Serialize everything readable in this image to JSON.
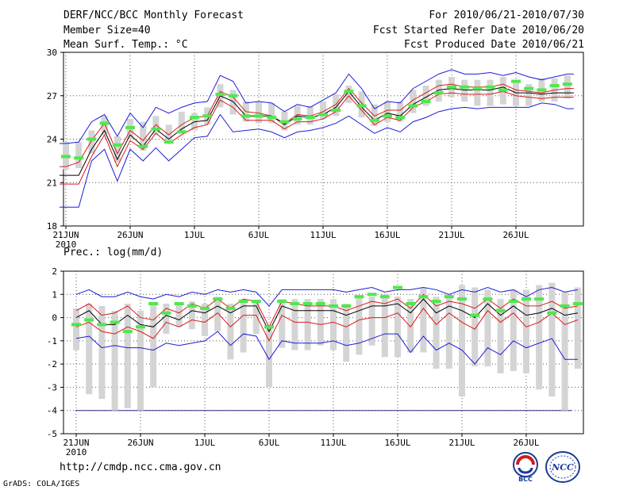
{
  "header": {
    "title": "DERF/NCC/BCC Monthly Forecast",
    "member_size": "Member Size=40",
    "variable": "Mean Surf. Temp.: °C",
    "period": "For 2010/06/21-2010/07/30",
    "fcst_started": "Fcst Started Refer Date 2010/06/20",
    "fcst_produced": "Fcst Produced Date 2010/06/21"
  },
  "footer": {
    "url": "http://cmdp.ncc.cma.gov.cn",
    "grads": "GrADS: COLA/IGES",
    "logo1_text": "BCC",
    "logo2_text": "NCC"
  },
  "colors": {
    "envelope": "#1c1cd8",
    "percentile": "#d81c1c",
    "median": "#000000",
    "box": "#d4d4d4",
    "observed": "#4ee84e",
    "grid": "#555555",
    "threshold": "#2a2a8a"
  },
  "chart_data": [
    {
      "type": "line",
      "title": "Mean Surf. Temp.: °C",
      "ylim": [
        18,
        30
      ],
      "yticks": [
        18,
        21,
        24,
        27,
        30
      ],
      "x_tick_labels": [
        "21JUN",
        "26JUN",
        "1JUL",
        "6JUL",
        "11JUL",
        "16JUL",
        "21JUL",
        "26JUL"
      ],
      "x_tick_days": [
        1,
        6,
        11,
        16,
        21,
        26,
        31,
        36
      ],
      "year_label": "2010",
      "n_days": 40,
      "series": [
        {
          "name": "max",
          "values": [
            23.7,
            23.8,
            25.2,
            25.7,
            24.2,
            25.8,
            24.8,
            26.2,
            25.8,
            26.2,
            26.5,
            26.6,
            28.4,
            28.0,
            26.5,
            26.6,
            26.5,
            25.9,
            26.4,
            26.2,
            26.7,
            27.2,
            28.5,
            27.5,
            26.1,
            26.6,
            26.5,
            27.5,
            28.0,
            28.5,
            28.8,
            28.5,
            28.5,
            28.6,
            28.4,
            28.6,
            28.3,
            28.1,
            28.3,
            28.5
          ]
        },
        {
          "name": "p_upper",
          "values": [
            22.1,
            22.4,
            23.9,
            25.1,
            23.0,
            24.6,
            23.9,
            25.0,
            24.3,
            25.0,
            25.5,
            25.6,
            27.3,
            26.9,
            25.9,
            25.8,
            25.6,
            25.1,
            25.7,
            25.6,
            25.9,
            26.4,
            27.5,
            26.5,
            25.6,
            26.0,
            26.0,
            26.7,
            27.2,
            27.7,
            27.8,
            27.6,
            27.6,
            27.6,
            27.8,
            27.4,
            27.3,
            27.2,
            27.4,
            27.5
          ]
        },
        {
          "name": "median",
          "values": [
            21.5,
            21.5,
            23.3,
            24.6,
            22.6,
            24.3,
            23.5,
            24.7,
            24.0,
            24.7,
            25.2,
            25.3,
            27.0,
            26.6,
            25.6,
            25.6,
            25.6,
            25.0,
            25.6,
            25.5,
            25.7,
            26.2,
            27.3,
            26.2,
            25.3,
            25.8,
            25.6,
            26.4,
            26.9,
            27.4,
            27.5,
            27.4,
            27.4,
            27.4,
            27.6,
            27.2,
            27.2,
            27.1,
            27.2,
            27.2
          ]
        },
        {
          "name": "p_lower",
          "values": [
            20.9,
            20.9,
            22.8,
            24.3,
            22.1,
            23.9,
            23.3,
            24.4,
            23.7,
            24.3,
            24.8,
            25.0,
            26.7,
            26.2,
            25.3,
            25.3,
            25.3,
            24.7,
            25.2,
            25.2,
            25.4,
            25.9,
            27.0,
            26.0,
            25.0,
            25.5,
            25.3,
            26.2,
            26.6,
            27.1,
            27.2,
            27.1,
            27.1,
            27.1,
            27.3,
            27.0,
            26.9,
            26.8,
            26.9,
            26.9
          ]
        },
        {
          "name": "min",
          "values": [
            19.3,
            19.3,
            22.5,
            23.3,
            21.1,
            23.3,
            22.5,
            23.4,
            22.5,
            23.3,
            24.1,
            24.2,
            25.7,
            24.5,
            24.6,
            24.7,
            24.5,
            24.1,
            24.5,
            24.6,
            24.8,
            25.1,
            25.6,
            25.0,
            24.4,
            24.8,
            24.5,
            25.2,
            25.5,
            25.9,
            26.1,
            26.2,
            26.1,
            26.2,
            26.2,
            26.2,
            26.2,
            26.5,
            26.4,
            26.1
          ]
        },
        {
          "name": "box_top",
          "values": [
            23.8,
            23.8,
            24.6,
            25.6,
            24.2,
            25.4,
            25.2,
            25.6,
            25.0,
            25.9,
            25.8,
            26.2,
            27.8,
            27.4,
            26.6,
            26.6,
            26.5,
            25.9,
            26.3,
            26.3,
            26.6,
            27.1,
            27.7,
            27.3,
            26.4,
            26.6,
            26.6,
            27.4,
            27.7,
            28.1,
            28.3,
            28.1,
            28.1,
            28.1,
            28.3,
            28.1,
            27.8,
            28.2,
            28.2,
            28.4
          ]
        },
        {
          "name": "box_bottom",
          "values": [
            21.9,
            22.0,
            23.0,
            24.3,
            22.4,
            24.0,
            23.2,
            24.3,
            23.7,
            24.5,
            24.6,
            25.0,
            26.2,
            25.7,
            25.2,
            25.1,
            25.1,
            24.6,
            25.0,
            25.0,
            25.4,
            25.6,
            26.5,
            25.5,
            24.9,
            25.2,
            25.2,
            25.8,
            26.3,
            26.6,
            26.9,
            26.6,
            26.3,
            26.3,
            26.4,
            26.3,
            26.3,
            26.6,
            26.6,
            26.8
          ]
        },
        {
          "name": "observed",
          "values": [
            22.8,
            22.7,
            24.0,
            25.1,
            23.6,
            24.8,
            23.5,
            24.7,
            23.8,
            24.5,
            25.5,
            25.6,
            27.1,
            27.0,
            25.6,
            25.6,
            25.5,
            25.2,
            25.4,
            25.5,
            25.7,
            26.0,
            27.3,
            26.3,
            25.3,
            25.6,
            25.5,
            26.3,
            26.6,
            27.2,
            27.6,
            27.6,
            27.5,
            27.6,
            27.4,
            28.0,
            27.5,
            27.4,
            27.7,
            27.8
          ]
        }
      ]
    },
    {
      "type": "line",
      "title": "Prec.: log(mm/d)",
      "ylim": [
        -5,
        2
      ],
      "yticks": [
        -5,
        -4,
        -3,
        -2,
        -1,
        0,
        1,
        2
      ],
      "threshold": -4,
      "x_tick_labels": [
        "21JUN",
        "26JUN",
        "1JUL",
        "6JUL",
        "11JUL",
        "16JUL",
        "21JUL",
        "26JUL"
      ],
      "x_tick_days": [
        1,
        6,
        11,
        16,
        21,
        26,
        31,
        36
      ],
      "year_label": "2010",
      "n_days": 40,
      "series": [
        {
          "name": "max",
          "values": [
            1.0,
            1.2,
            0.9,
            0.9,
            1.1,
            0.9,
            0.8,
            1.0,
            0.9,
            1.1,
            1.0,
            1.2,
            1.1,
            1.2,
            1.1,
            0.5,
            1.2,
            1.2,
            1.2,
            1.2,
            1.2,
            1.1,
            1.2,
            1.3,
            1.1,
            1.2,
            1.2,
            1.3,
            1.2,
            1.0,
            1.2,
            1.1,
            1.3,
            1.1,
            1.2,
            0.9,
            1.2,
            1.3,
            1.1,
            1.2
          ]
        },
        {
          "name": "p_upper",
          "values": [
            0.3,
            0.6,
            0.1,
            0.2,
            0.5,
            0.0,
            -0.1,
            0.4,
            0.2,
            0.6,
            0.4,
            0.8,
            0.4,
            0.8,
            0.7,
            -0.4,
            0.7,
            0.6,
            0.5,
            0.5,
            0.5,
            0.3,
            0.5,
            0.7,
            0.6,
            0.8,
            0.4,
            1.0,
            0.5,
            0.7,
            0.6,
            0.4,
            0.8,
            0.4,
            0.8,
            0.5,
            0.5,
            0.7,
            0.4,
            0.5
          ]
        },
        {
          "name": "median",
          "values": [
            0.0,
            0.3,
            -0.3,
            -0.3,
            0.1,
            -0.3,
            -0.4,
            0.1,
            -0.1,
            0.3,
            0.2,
            0.5,
            0.2,
            0.5,
            0.5,
            -0.6,
            0.5,
            0.3,
            0.3,
            0.3,
            0.3,
            0.1,
            0.3,
            0.5,
            0.5,
            0.6,
            0.2,
            0.8,
            0.2,
            0.5,
            0.3,
            0.0,
            0.6,
            0.1,
            0.5,
            0.1,
            0.2,
            0.4,
            0.1,
            0.2
          ]
        },
        {
          "name": "p_lower",
          "values": [
            -0.4,
            -0.2,
            -0.6,
            -0.7,
            -0.4,
            -0.6,
            -0.9,
            -0.2,
            -0.4,
            -0.1,
            -0.2,
            0.2,
            -0.4,
            0.1,
            0.1,
            -1.0,
            0.1,
            -0.2,
            -0.2,
            -0.3,
            -0.2,
            -0.4,
            -0.1,
            0.0,
            0.0,
            0.2,
            -0.4,
            0.4,
            -0.3,
            0.2,
            -0.2,
            -0.5,
            0.3,
            -0.2,
            0.2,
            -0.4,
            -0.2,
            0.2,
            -0.3,
            -0.1
          ]
        },
        {
          "name": "min",
          "values": [
            -0.9,
            -0.8,
            -1.3,
            -1.2,
            -1.3,
            -1.3,
            -1.4,
            -1.1,
            -1.2,
            -1.1,
            -1.0,
            -0.6,
            -1.2,
            -0.7,
            -0.8,
            -1.8,
            -1.0,
            -1.1,
            -1.1,
            -1.1,
            -1.0,
            -1.2,
            -1.1,
            -0.9,
            -0.7,
            -0.7,
            -1.5,
            -0.8,
            -1.4,
            -1.1,
            -1.4,
            -2.0,
            -1.3,
            -1.6,
            -1.0,
            -1.3,
            -1.1,
            -0.9,
            -1.8,
            -1.8
          ]
        },
        {
          "name": "box_top",
          "values": [
            0.4,
            0.6,
            0.5,
            0.3,
            0.6,
            0.3,
            0.6,
            0.6,
            0.6,
            0.7,
            0.6,
            0.9,
            0.6,
            0.8,
            0.7,
            -0.3,
            0.8,
            0.8,
            0.8,
            0.8,
            0.8,
            0.6,
            0.9,
            0.9,
            1.0,
            0.9,
            0.8,
            1.3,
            0.9,
            1.0,
            1.4,
            1.3,
            1.2,
            0.8,
            1.2,
            1.2,
            1.4,
            1.5,
            1.1,
            1.3
          ]
        },
        {
          "name": "box_bottom",
          "values": [
            -1.4,
            -3.3,
            -3.5,
            -4.0,
            -3.9,
            -4.0,
            -3.0,
            -0.7,
            -0.4,
            -0.5,
            -0.8,
            -0.6,
            -1.8,
            -1.5,
            -0.7,
            -3.0,
            -1.3,
            -1.4,
            -1.4,
            -1.2,
            -1.4,
            -1.9,
            -1.6,
            -1.2,
            -1.7,
            -1.7,
            -1.5,
            -1.5,
            -2.2,
            -2.2,
            -3.4,
            -2.1,
            -2.1,
            -2.4,
            -2.3,
            -2.4,
            -3.1,
            -3.4,
            -4.0,
            -2.2
          ]
        },
        {
          "name": "observed",
          "values": [
            -0.3,
            -0.1,
            -0.3,
            -0.2,
            -0.6,
            -0.4,
            0.6,
            0.2,
            0.6,
            0.5,
            0.4,
            0.8,
            0.4,
            0.7,
            0.7,
            -0.4,
            0.7,
            0.6,
            0.6,
            0.6,
            0.5,
            0.5,
            0.9,
            1.0,
            0.9,
            1.3,
            0.6,
            0.9,
            0.7,
            0.9,
            0.8,
            0.1,
            0.8,
            0.3,
            0.7,
            0.8,
            0.8,
            0.2,
            0.5,
            0.6
          ]
        }
      ]
    }
  ]
}
